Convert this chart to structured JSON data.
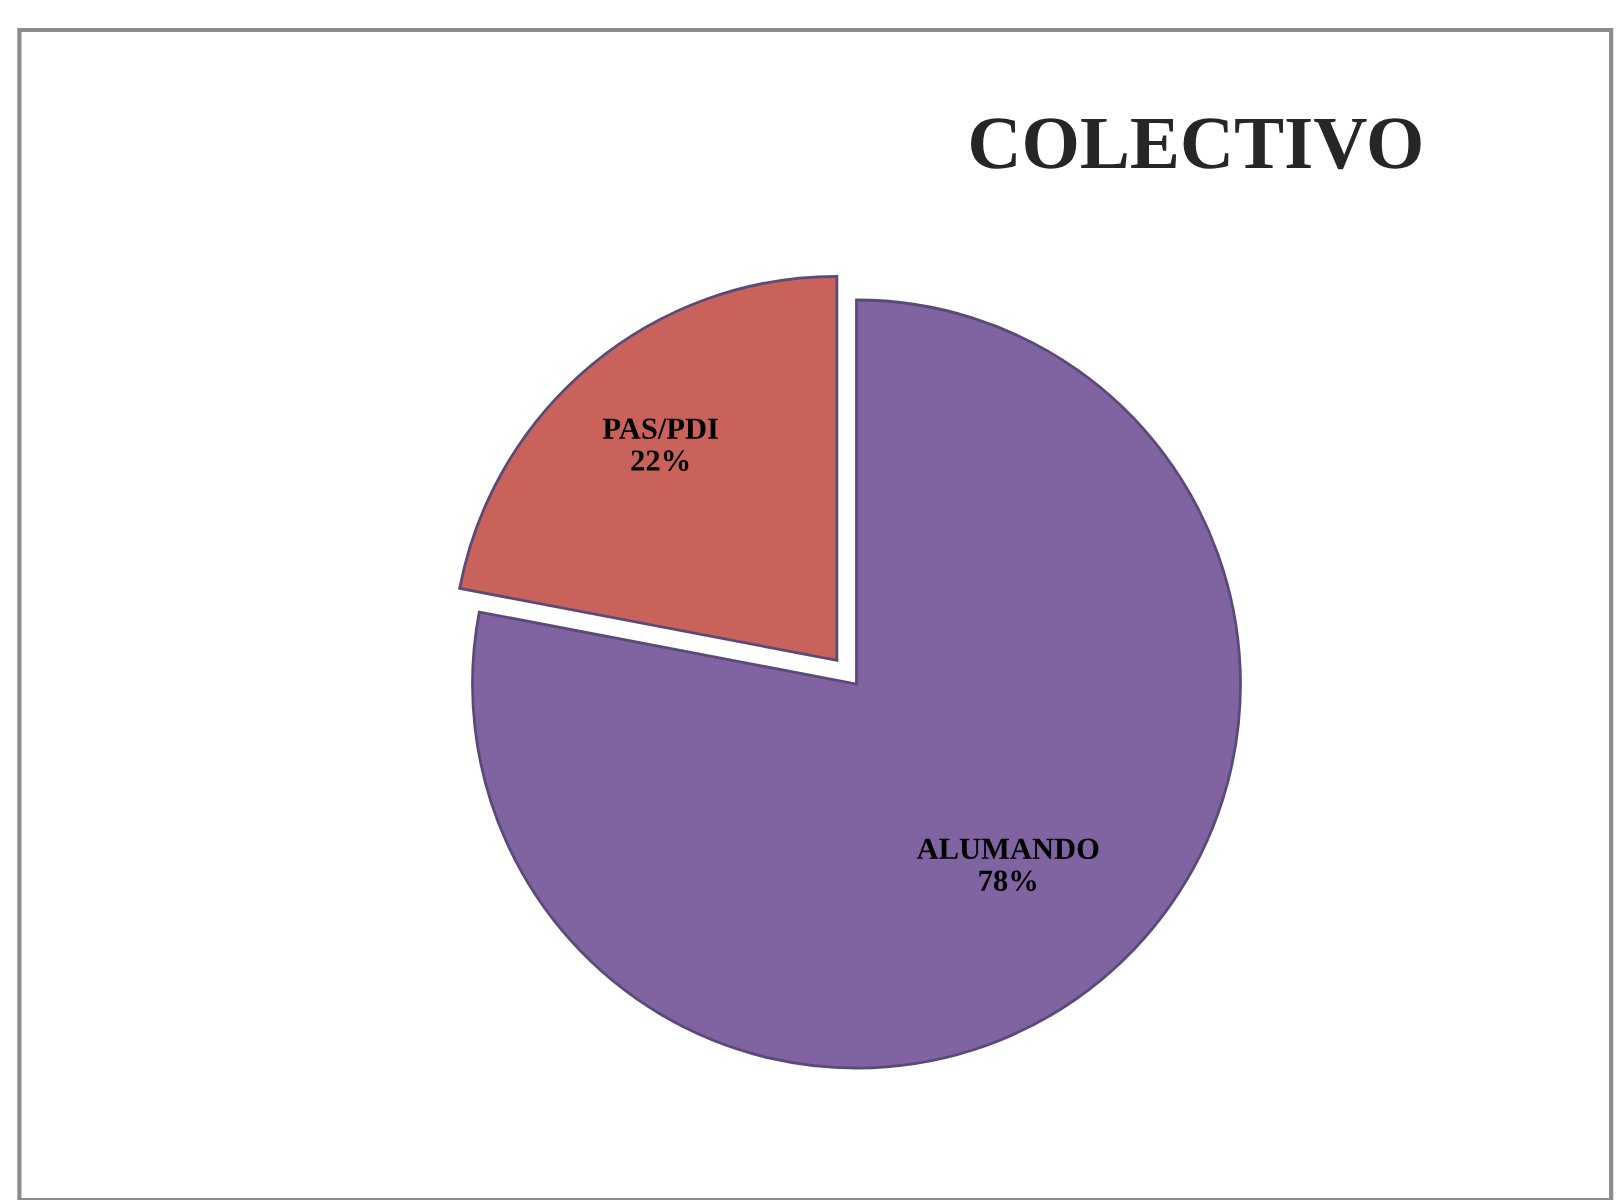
{
  "chart_data": {
    "type": "pie",
    "title": "COLECTIVO",
    "categories": [
      "ALUMANDO",
      "PAS/PDI"
    ],
    "values": [
      78,
      22
    ],
    "value_labels": [
      "78%",
      "22%"
    ],
    "colors": [
      "#8064a2",
      "#c8625a"
    ],
    "legend": false
  }
}
